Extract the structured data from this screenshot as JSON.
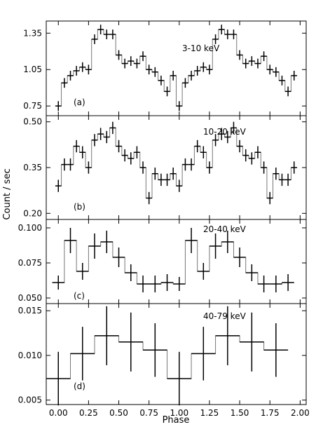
{
  "figure": {
    "ylabel": "Count / sec",
    "xlabel": "Phase",
    "x_ticks": [
      "0.00",
      "0.25",
      "0.50",
      "0.75",
      "1.00",
      "1.25",
      "1.50",
      "1.75",
      "2.00"
    ]
  },
  "chart_data": [
    {
      "type": "step",
      "energy_label": "3-10 keV",
      "panel_label": "(a)",
      "xlim": [
        -0.1,
        2.05
      ],
      "ylim": [
        0.67,
        1.45
      ],
      "y_ticks": [
        "0.75",
        "1.05",
        "1.35"
      ],
      "bin_width": 0.05,
      "x": [
        0.0,
        0.05,
        0.1,
        0.15,
        0.2,
        0.25,
        0.3,
        0.35,
        0.4,
        0.45,
        0.5,
        0.55,
        0.6,
        0.65,
        0.7,
        0.75,
        0.8,
        0.85,
        0.9,
        0.95,
        1.0,
        1.05,
        1.1,
        1.15,
        1.2,
        1.25,
        1.3,
        1.35,
        1.4,
        1.45,
        1.5,
        1.55,
        1.6,
        1.65,
        1.7,
        1.75,
        1.8,
        1.85,
        1.9,
        1.95
      ],
      "y": [
        0.75,
        0.94,
        1.0,
        1.04,
        1.07,
        1.05,
        1.3,
        1.38,
        1.34,
        1.34,
        1.17,
        1.1,
        1.12,
        1.1,
        1.16,
        1.05,
        1.03,
        0.96,
        0.87,
        1.0,
        0.75,
        0.94,
        1.0,
        1.04,
        1.07,
        1.05,
        1.3,
        1.38,
        1.34,
        1.34,
        1.17,
        1.1,
        1.12,
        1.1,
        1.16,
        1.05,
        1.03,
        0.96,
        0.87,
        1.0
      ],
      "yerr": [
        0.04,
        0.04,
        0.04,
        0.04,
        0.04,
        0.04,
        0.04,
        0.04,
        0.04,
        0.04,
        0.04,
        0.04,
        0.04,
        0.04,
        0.04,
        0.04,
        0.04,
        0.04,
        0.04,
        0.04,
        0.04,
        0.04,
        0.04,
        0.04,
        0.04,
        0.04,
        0.04,
        0.04,
        0.04,
        0.04,
        0.04,
        0.04,
        0.04,
        0.04,
        0.04,
        0.04,
        0.04,
        0.04,
        0.04,
        0.04
      ]
    },
    {
      "type": "step",
      "energy_label": "10-20 keV",
      "panel_label": "(b)",
      "xlim": [
        -0.1,
        2.05
      ],
      "ylim": [
        0.18,
        0.52
      ],
      "y_ticks": [
        "0.20",
        "0.35",
        "0.50"
      ],
      "bin_width": 0.05,
      "x": [
        0.0,
        0.05,
        0.1,
        0.15,
        0.2,
        0.25,
        0.3,
        0.35,
        0.4,
        0.45,
        0.5,
        0.55,
        0.6,
        0.65,
        0.7,
        0.75,
        0.8,
        0.85,
        0.9,
        0.95,
        1.0,
        1.05,
        1.1,
        1.15,
        1.2,
        1.25,
        1.3,
        1.35,
        1.4,
        1.45,
        1.5,
        1.55,
        1.6,
        1.65,
        1.7,
        1.75,
        1.8,
        1.85,
        1.9,
        1.95
      ],
      "y": [
        0.29,
        0.36,
        0.36,
        0.42,
        0.4,
        0.35,
        0.44,
        0.46,
        0.45,
        0.48,
        0.42,
        0.39,
        0.38,
        0.4,
        0.35,
        0.25,
        0.33,
        0.31,
        0.31,
        0.33,
        0.29,
        0.36,
        0.36,
        0.42,
        0.4,
        0.35,
        0.44,
        0.46,
        0.45,
        0.48,
        0.42,
        0.39,
        0.38,
        0.4,
        0.35,
        0.25,
        0.33,
        0.31,
        0.31,
        0.35
      ],
      "yerr": [
        0.02,
        0.02,
        0.02,
        0.02,
        0.02,
        0.02,
        0.02,
        0.02,
        0.02,
        0.02,
        0.02,
        0.02,
        0.02,
        0.02,
        0.02,
        0.02,
        0.02,
        0.02,
        0.02,
        0.02,
        0.02,
        0.02,
        0.02,
        0.02,
        0.02,
        0.02,
        0.02,
        0.02,
        0.02,
        0.02,
        0.02,
        0.02,
        0.02,
        0.02,
        0.02,
        0.02,
        0.02,
        0.02,
        0.02,
        0.02
      ]
    },
    {
      "type": "step",
      "energy_label": "20-40 keV",
      "panel_label": "(c)",
      "xlim": [
        -0.1,
        2.05
      ],
      "ylim": [
        0.046,
        0.106
      ],
      "y_ticks": [
        "0.050",
        "0.075",
        "0.100"
      ],
      "bin_width": 0.1,
      "x": [
        0.0,
        0.1,
        0.2,
        0.3,
        0.4,
        0.5,
        0.6,
        0.7,
        0.8,
        0.9,
        1.0,
        1.1,
        1.2,
        1.3,
        1.4,
        1.5,
        1.6,
        1.7,
        1.8,
        1.9
      ],
      "y": [
        0.061,
        0.091,
        0.069,
        0.087,
        0.09,
        0.079,
        0.068,
        0.06,
        0.06,
        0.061,
        0.06,
        0.091,
        0.069,
        0.087,
        0.09,
        0.079,
        0.068,
        0.06,
        0.06,
        0.061
      ],
      "yerr": [
        0.005,
        0.009,
        0.006,
        0.009,
        0.008,
        0.007,
        0.006,
        0.006,
        0.006,
        0.006,
        0.005,
        0.009,
        0.006,
        0.009,
        0.008,
        0.007,
        0.006,
        0.006,
        0.006,
        0.006
      ]
    },
    {
      "type": "step",
      "energy_label": "40-79 keV",
      "panel_label": "(d)",
      "xlim": [
        -0.1,
        2.05
      ],
      "ylim": [
        0.0045,
        0.0158
      ],
      "y_ticks": [
        "0.005",
        "0.010",
        "0.015"
      ],
      "bin_width": 0.2,
      "x": [
        0.0,
        0.2,
        0.4,
        0.6,
        0.8,
        1.0,
        1.2,
        1.4,
        1.6,
        1.8
      ],
      "y": [
        0.0074,
        0.0102,
        0.0122,
        0.0115,
        0.0106,
        0.0074,
        0.0102,
        0.0122,
        0.0115,
        0.0106
      ],
      "yerr": [
        0.003,
        0.003,
        0.0033,
        0.0033,
        0.003,
        0.003,
        0.003,
        0.0033,
        0.0033,
        0.003
      ]
    }
  ]
}
